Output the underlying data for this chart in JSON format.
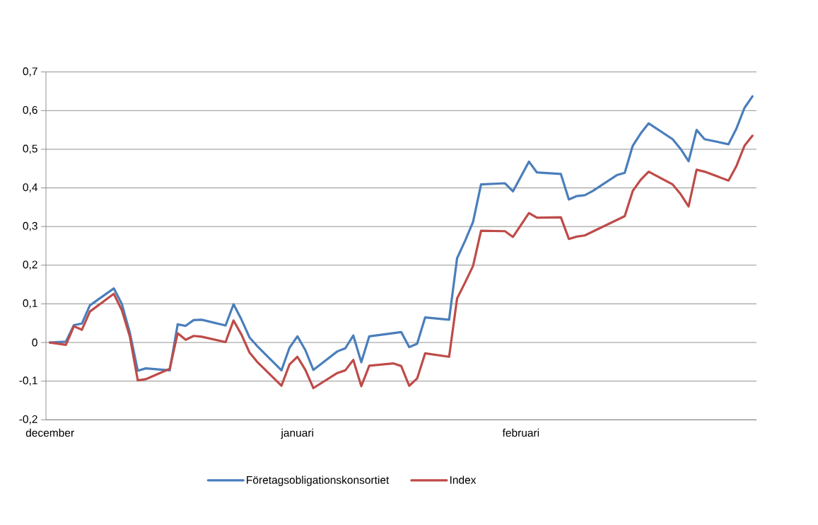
{
  "chart_data": {
    "type": "line",
    "categories": [
      "december",
      null,
      null,
      null,
      null,
      null,
      null,
      null,
      null,
      null,
      null,
      null,
      null,
      null,
      null,
      null,
      null,
      null,
      null,
      null,
      null,
      null,
      null,
      null,
      null,
      null,
      null,
      null,
      null,
      null,
      null,
      "januari",
      null,
      null,
      null,
      null,
      null,
      null,
      null,
      null,
      null,
      null,
      null,
      null,
      null,
      null,
      null,
      null,
      null,
      null,
      null,
      null,
      null,
      null,
      null,
      null,
      null,
      null,
      null,
      "februari",
      null,
      null,
      null,
      null,
      null,
      null,
      null,
      null,
      null,
      null,
      null,
      null,
      null,
      null,
      null,
      null,
      null,
      null,
      null,
      null,
      null,
      null,
      null,
      null,
      null,
      null,
      null,
      null,
      null
    ],
    "series": [
      {
        "name": "Företagsobligationskonsortiet",
        "color": "#4a7ebb",
        "values": [
          0,
          null,
          0.002,
          0.045,
          0.049,
          0.096,
          null,
          null,
          0.14,
          0.1,
          0.026,
          -0.073,
          -0.067,
          null,
          null,
          -0.072,
          0.047,
          0.043,
          0.058,
          0.059,
          null,
          null,
          0.044,
          0.099,
          0.059,
          0.013,
          -0.01,
          null,
          null,
          -0.072,
          -0.014,
          0.016,
          -0.02,
          -0.071,
          null,
          null,
          -0.023,
          -0.015,
          0.018,
          -0.051,
          0.016,
          null,
          null,
          0.024,
          0.027,
          -0.012,
          -0.003,
          0.065,
          null,
          null,
          0.059,
          0.218,
          0.263,
          0.312,
          0.409,
          null,
          null,
          0.412,
          0.391,
          null,
          0.468,
          0.44,
          null,
          null,
          0.436,
          0.37,
          0.379,
          0.381,
          0.392,
          null,
          null,
          0.433,
          0.439,
          0.509,
          0.541,
          0.567,
          null,
          null,
          0.526,
          0.501,
          0.469,
          0.55,
          0.526,
          null,
          null,
          0.513,
          0.554,
          0.607,
          0.637
        ]
      },
      {
        "name": "Index",
        "color": "#be4b48",
        "values": [
          0,
          null,
          -0.006,
          0.042,
          0.033,
          0.08,
          null,
          null,
          0.126,
          0.084,
          0.016,
          -0.098,
          -0.095,
          null,
          null,
          -0.068,
          0.024,
          0.007,
          0.017,
          0.015,
          null,
          null,
          0.001,
          0.057,
          0.02,
          -0.026,
          -0.051,
          null,
          null,
          -0.112,
          -0.057,
          -0.037,
          -0.071,
          -0.118,
          null,
          null,
          -0.079,
          -0.072,
          -0.045,
          -0.113,
          -0.06,
          null,
          null,
          -0.054,
          -0.061,
          -0.112,
          -0.093,
          -0.028,
          null,
          null,
          -0.037,
          0.114,
          0.155,
          0.198,
          0.289,
          null,
          null,
          0.288,
          0.273,
          null,
          0.335,
          0.323,
          null,
          null,
          0.324,
          0.268,
          0.274,
          0.277,
          0.287,
          null,
          null,
          0.317,
          0.327,
          0.392,
          0.421,
          0.442,
          null,
          null,
          0.409,
          0.384,
          0.352,
          0.447,
          0.442,
          null,
          null,
          0.419,
          0.457,
          0.509,
          0.535
        ]
      }
    ],
    "ylim": [
      -0.2,
      0.7
    ],
    "yticks": [
      {
        "value": -0.2,
        "label": "-0,2"
      },
      {
        "value": -0.1,
        "label": "-0,1"
      },
      0,
      {
        "value": 0.1,
        "label": "0,1"
      },
      {
        "value": 0.2,
        "label": "0,2"
      },
      {
        "value": 0.3,
        "label": "0,3"
      },
      {
        "value": 0.4,
        "label": "0,4"
      },
      {
        "value": 0.5,
        "label": "0,5"
      },
      {
        "value": 0.6,
        "label": "0,6"
      },
      {
        "value": 0.7,
        "label": "0,7"
      }
    ],
    "grid": "y",
    "legend": "bottom",
    "marker": "none",
    "line_style": "solid"
  }
}
